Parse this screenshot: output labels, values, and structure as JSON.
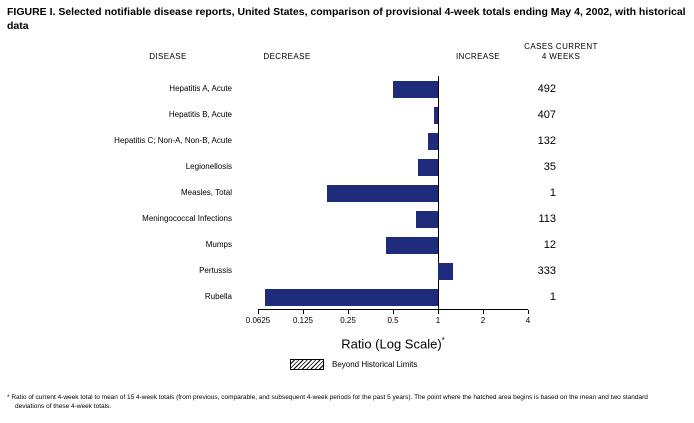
{
  "figure": {
    "title": "FIGURE I. Selected notifiable disease reports, United States, comparison of provisional 4-week totals ending May 4, 2002, with historical data",
    "column_headers": {
      "disease": "DISEASE",
      "decrease": "DECREASE",
      "increase": "INCREASE",
      "cases_line1": "CASES CURRENT",
      "cases_line2": "4 WEEKS"
    },
    "x_axis_label": "Ratio (Log Scale)",
    "x_axis_label_note_marker": "*",
    "legend_label": "Beyond Historical Limits",
    "footnote": "* Ratio of current 4-week total to mean of 15 4-week totals (from previous, comparable, and subsequent 4-week periods for the past 5 years). The point where the hatched area begins is based on the mean and two standard deviations of these 4-week totals."
  },
  "chart_data": {
    "type": "bar",
    "orientation": "horizontal",
    "x_scale": "log2",
    "baseline": 1,
    "xlim": [
      0.0625,
      4
    ],
    "x_ticks": [
      0.0625,
      0.125,
      0.25,
      0.5,
      1,
      2,
      4
    ],
    "x_tick_labels": [
      "0.0625",
      "0.125",
      "0.25",
      "0.5",
      "1",
      "2",
      "4"
    ],
    "xlabel": "Ratio (Log Scale)*",
    "title": "FIGURE I. Selected notifiable disease reports, United States, comparison of provisional 4-week totals ending May 4, 2002, with historical data",
    "grid": false,
    "bar_color": "#1f2c7c",
    "categories": [
      "Hepatitis A, Acute",
      "Hepatitis B, Acute",
      "Hepatitis C; Non-A, Non-B, Acute",
      "Legionellosis",
      "Measles, Total",
      "Meningococcal Infections",
      "Mumps",
      "Pertussis",
      "Rubella"
    ],
    "series": [
      {
        "name": "Ratio of current 4-week total to historical mean",
        "values": [
          0.5,
          0.94,
          0.86,
          0.74,
          0.18,
          0.71,
          0.45,
          1.26,
          0.07
        ]
      }
    ],
    "cases_current_4_weeks": [
      492,
      407,
      132,
      35,
      1,
      113,
      12,
      333,
      1
    ],
    "legend": [
      {
        "label": "Beyond Historical Limits",
        "style": "hatched"
      }
    ],
    "legend_position": "bottom"
  }
}
